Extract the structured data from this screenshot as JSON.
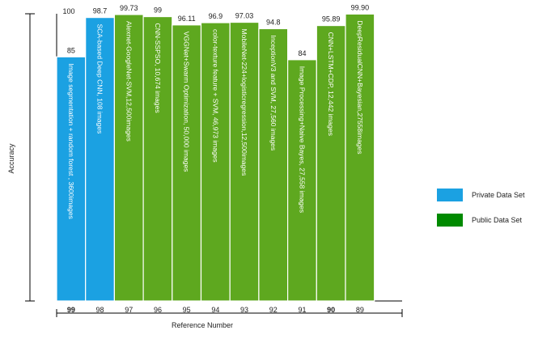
{
  "chart_data": {
    "type": "bar",
    "title": "",
    "xlabel": "Reference Number",
    "ylabel": "Accuracy",
    "ylim": [
      0,
      100
    ],
    "grid": false,
    "legend_position": "right",
    "categories": [
      "99",
      "98",
      "97",
      "96",
      "95",
      "94",
      "93",
      "92",
      "91",
      "90",
      "89"
    ],
    "bold_categories": [
      "99",
      "90"
    ],
    "values": [
      85,
      98.7,
      99.73,
      99,
      96.11,
      96.9,
      97.03,
      94.8,
      84,
      95.89,
      99.9
    ],
    "value_labels": [
      "85",
      "98.7",
      "99.73",
      "99",
      "96.11",
      "96.9",
      "97.03",
      "94.8",
      "84",
      "95.89",
      "99.90"
    ],
    "bar_labels": [
      "Image segmentation + random forest , 3600images",
      "SCA-based Deep CNN, 108 images",
      "Alexnet-GoogleNet-SVM,12,500images",
      "CNN-SSPSO, 10,674 images",
      "VGGNet+Swarm Optimization, 50,000 images",
      "color-texture feature + SVM, 46,973 images",
      "MobileNet-224+logisticregression,12,500images",
      "InceptionV3 and SVM, 27,560 images",
      "Image Processing+Naive Bayes, 27,558 images",
      "CNN+LSTM+CDP, 12,442 images",
      "DeepResidualCNN+Bayesian,27558images"
    ],
    "series_type": [
      "private",
      "private",
      "public",
      "public",
      "public",
      "public",
      "public",
      "public",
      "public",
      "public",
      "public"
    ],
    "y_top_label": "100",
    "legend": [
      {
        "key": "private",
        "name": "Private Data Set",
        "color": "#1ba1e2"
      },
      {
        "key": "public",
        "name": "Public Data Set",
        "color": "#5ea81f"
      }
    ],
    "legend_swatch_colors": {
      "private": "#1ba1e2",
      "public": "#008a00"
    },
    "colors": {
      "private": "#1ba1e2",
      "public": "#5ea81f",
      "bar_stroke": "#ffffff",
      "axis": "#000000"
    }
  }
}
